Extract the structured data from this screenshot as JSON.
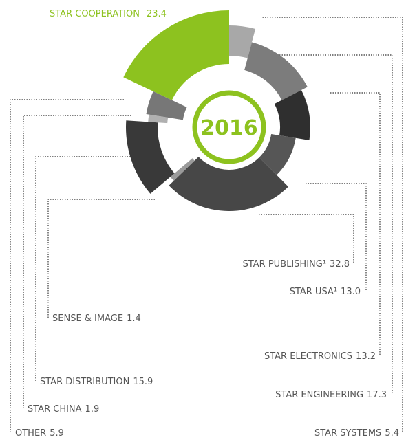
{
  "chart_data": {
    "type": "donut",
    "center_label": "2016",
    "categories": [
      "STAR COOPERATION",
      "STAR SYSTEMS",
      "STAR ENGINEERING",
      "STAR ELECTRONICS",
      "STAR USA¹",
      "STAR PUBLISHING¹",
      "SENSE & IMAGE",
      "STAR DISTRIBUTION",
      "STAR CHINA",
      "OTHER"
    ],
    "values": [
      23.4,
      5.4,
      17.3,
      13.2,
      13.0,
      32.8,
      1.4,
      15.9,
      1.9,
      5.9
    ],
    "value_labels": [
      "23.4",
      "5.4",
      "17.3",
      "13.2",
      "13.0",
      "32.8",
      "1.4",
      "15.9",
      "1.9",
      "5.9"
    ],
    "colors": [
      "#8dc21f",
      "#a8a8a8",
      "#7c7c7c",
      "#2f2f2f",
      "#565656",
      "#474747",
      "#9a9a9a",
      "#393939",
      "#b0b0b0",
      "#777777"
    ],
    "center_color": "#8dc21f"
  }
}
